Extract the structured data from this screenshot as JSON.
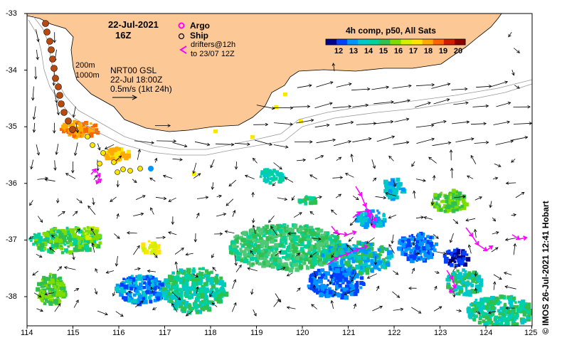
{
  "header": {
    "date": "22-Jul-2021",
    "time": "16Z",
    "product": "4h comp, p50, All Sats"
  },
  "legend": {
    "argo_label": "Argo",
    "ship_label": "Ship",
    "drifters_line1": "drifters@12h",
    "drifters_line2": "to 23/07 12Z",
    "argo_color": "#ff00ff",
    "drifter_color": "#ff00ff"
  },
  "contours": {
    "label_200": "200m",
    "label_1000": "1000m"
  },
  "currents": {
    "source": "NRT00 GSL",
    "time": "22-Jul 18:00Z",
    "scale": "0.5m/s (1kt 24h)"
  },
  "colorbar": {
    "ticks": [
      "12",
      "13",
      "14",
      "15",
      "16",
      "17",
      "18",
      "19",
      "20"
    ],
    "colors": [
      "#00008b",
      "#0040ff",
      "#0096ff",
      "#00c8c8",
      "#00d29b",
      "#30c050",
      "#7ddc00",
      "#d2f000",
      "#ffe600",
      "#ffaa00",
      "#ff6400",
      "#d21e00",
      "#8b0000"
    ]
  },
  "axes": {
    "x_ticks": [
      "114",
      "115",
      "116",
      "117",
      "118",
      "119",
      "120",
      "121",
      "122",
      "123",
      "124",
      "125"
    ],
    "y_ticks": [
      "-33",
      "-34",
      "-35",
      "-36",
      "-37",
      "-38"
    ]
  },
  "credit": "© IMOS 26-Jul-2021 12:41 Hobart",
  "land_color": "#fcc896"
}
